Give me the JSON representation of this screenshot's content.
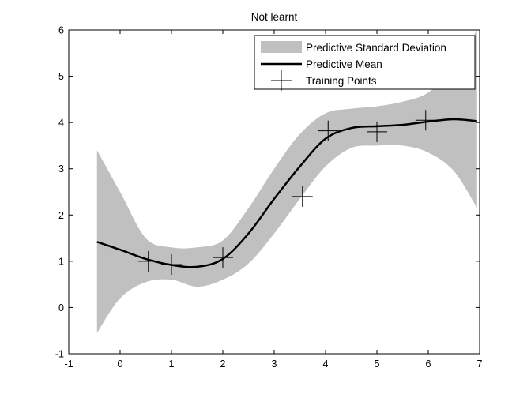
{
  "chart_data": {
    "type": "line",
    "title": "Not learnt",
    "xlabel": "",
    "ylabel": "",
    "xlim": [
      -1,
      7
    ],
    "ylim": [
      -1,
      6
    ],
    "xticks": [
      -1,
      0,
      1,
      2,
      3,
      4,
      5,
      6,
      7
    ],
    "yticks": [
      -1,
      0,
      1,
      2,
      3,
      4,
      5,
      6
    ],
    "grid": false,
    "legend": {
      "placement": "top-right",
      "entries": [
        "Predictive Standard Deviation",
        "Predictive Mean",
        "Training Points"
      ]
    },
    "series": [
      {
        "name": "Predictive Standard Deviation",
        "kind": "band",
        "color": "#c0c0c0",
        "x": [
          -0.45,
          0,
          0.5,
          1,
          1.5,
          2,
          2.5,
          3,
          3.5,
          4,
          4.5,
          5,
          5.5,
          6,
          6.5,
          6.95
        ],
        "lower": [
          -0.55,
          0.2,
          0.55,
          0.6,
          0.45,
          0.6,
          0.95,
          1.6,
          2.35,
          3.05,
          3.45,
          3.5,
          3.5,
          3.35,
          2.95,
          2.15
        ],
        "upper": [
          3.4,
          2.5,
          1.5,
          1.3,
          1.3,
          1.45,
          2.15,
          3.0,
          3.75,
          4.2,
          4.3,
          4.35,
          4.45,
          4.65,
          5.2,
          6.0
        ]
      },
      {
        "name": "Predictive Mean",
        "kind": "line",
        "color": "#000000",
        "x": [
          -0.45,
          0,
          0.5,
          1,
          1.5,
          2,
          2.5,
          3,
          3.5,
          4,
          4.5,
          5,
          5.5,
          6,
          6.5,
          6.95
        ],
        "values": [
          1.42,
          1.25,
          1.05,
          0.92,
          0.88,
          1.05,
          1.6,
          2.35,
          3.05,
          3.65,
          3.88,
          3.92,
          3.95,
          4.02,
          4.07,
          4.03
        ]
      },
      {
        "name": "Training Points",
        "kind": "markers",
        "marker": "plus",
        "color": "#000000",
        "x": [
          0.55,
          1.0,
          2.0,
          3.55,
          4.05,
          5.0,
          5.95
        ],
        "values": [
          1.0,
          0.93,
          1.08,
          2.4,
          3.82,
          3.8,
          4.05
        ]
      }
    ]
  }
}
